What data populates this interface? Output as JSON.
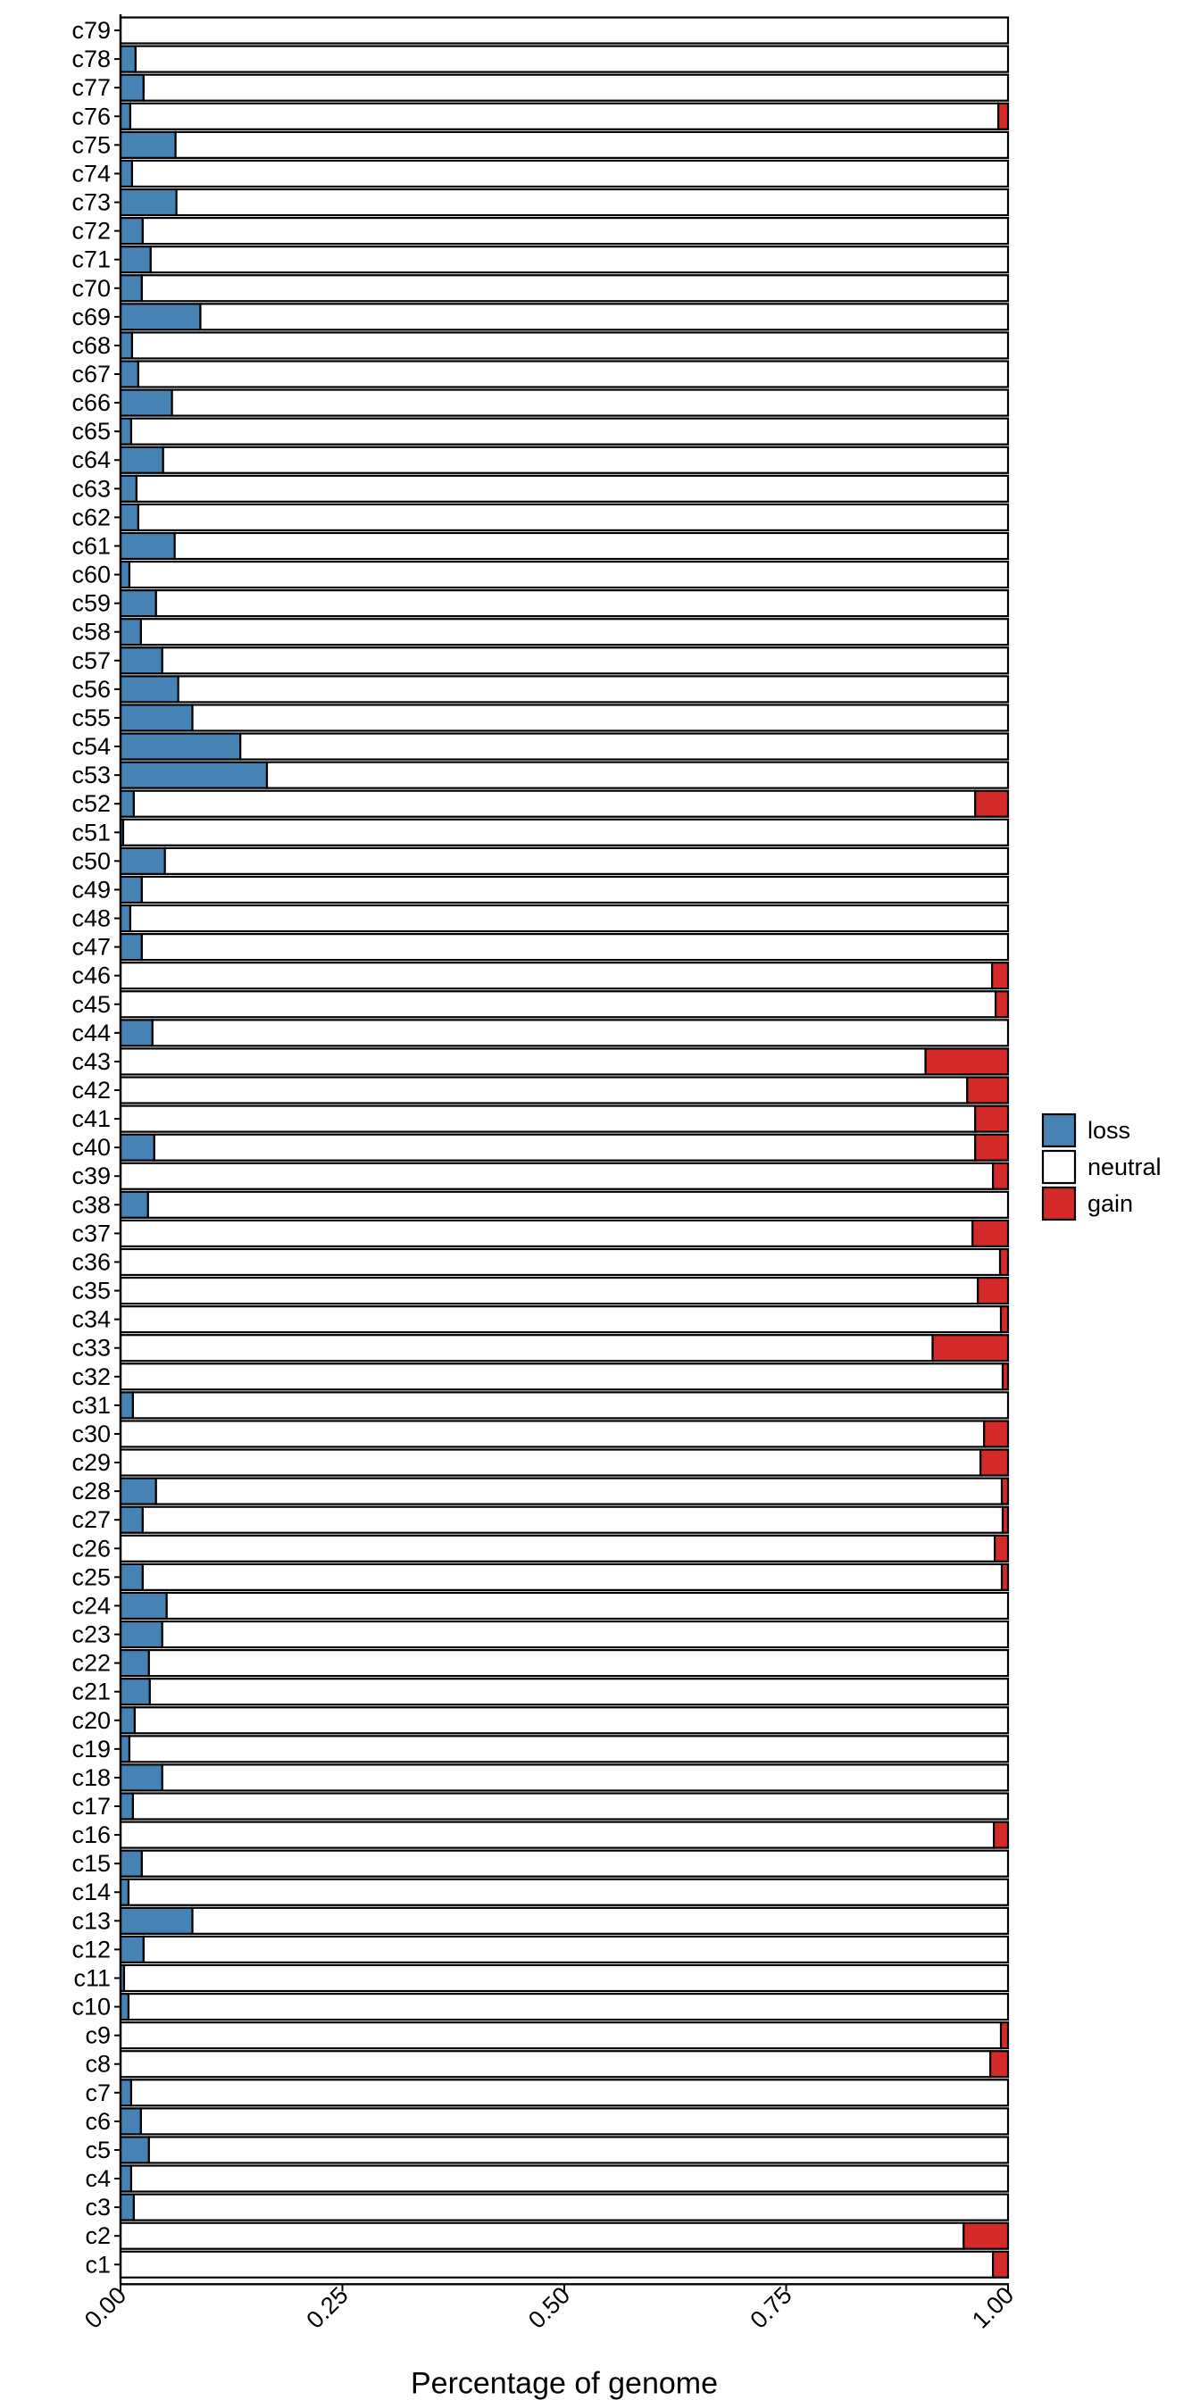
{
  "chart_data": {
    "type": "bar",
    "orientation": "horizontal",
    "stacked": true,
    "xlabel": "Percentage of genome",
    "ylabel": "",
    "xlim": [
      0,
      1
    ],
    "x_ticks": [
      "0.00",
      "0.25",
      "0.50",
      "0.75",
      "1.00"
    ],
    "grid": false,
    "legend": {
      "position": "right",
      "title": ""
    },
    "categories": [
      "c79",
      "c78",
      "c77",
      "c76",
      "c75",
      "c74",
      "c73",
      "c72",
      "c71",
      "c70",
      "c69",
      "c68",
      "c67",
      "c66",
      "c65",
      "c64",
      "c63",
      "c62",
      "c61",
      "c60",
      "c59",
      "c58",
      "c57",
      "c56",
      "c55",
      "c54",
      "c53",
      "c52",
      "c51",
      "c50",
      "c49",
      "c48",
      "c47",
      "c46",
      "c45",
      "c44",
      "c43",
      "c42",
      "c41",
      "c40",
      "c39",
      "c38",
      "c37",
      "c36",
      "c35",
      "c34",
      "c33",
      "c32",
      "c31",
      "c30",
      "c29",
      "c28",
      "c27",
      "c26",
      "c25",
      "c24",
      "c23",
      "c22",
      "c21",
      "c20",
      "c19",
      "c18",
      "c17",
      "c16",
      "c15",
      "c14",
      "c13",
      "c12",
      "c11",
      "c10",
      "c9",
      "c8",
      "c7",
      "c6",
      "c5",
      "c4",
      "c3",
      "c2",
      "c1"
    ],
    "series": [
      {
        "name": "loss",
        "color": "#4682B4",
        "values": [
          0,
          0.017,
          0.026,
          0.011,
          0.062,
          0.013,
          0.063,
          0.025,
          0.034,
          0.024,
          0.09,
          0.013,
          0.02,
          0.058,
          0.012,
          0.048,
          0.018,
          0.02,
          0.061,
          0.01,
          0.04,
          0.023,
          0.047,
          0.065,
          0.081,
          0.135,
          0.165,
          0.015,
          0.003,
          0.05,
          0.024,
          0.011,
          0.024,
          0,
          0,
          0.036,
          0,
          0,
          0,
          0.038,
          0,
          0.031,
          0,
          0,
          0,
          0,
          0,
          0,
          0.014,
          0,
          0,
          0.04,
          0.025,
          0,
          0.025,
          0.052,
          0.047,
          0.032,
          0.033,
          0.016,
          0.01,
          0.047,
          0.014,
          0,
          0.024,
          0.009,
          0.081,
          0.026,
          0.004,
          0.009,
          0,
          0,
          0.012,
          0.023,
          0.032,
          0.012,
          0.015,
          0,
          0
        ]
      },
      {
        "name": "neutral",
        "color": "#FFFFFF",
        "values": [
          1,
          0.983,
          0.974,
          0.978,
          0.938,
          0.987,
          0.937,
          0.975,
          0.966,
          0.976,
          0.91,
          0.987,
          0.98,
          0.942,
          0.988,
          0.952,
          0.982,
          0.98,
          0.939,
          0.99,
          0.96,
          0.977,
          0.953,
          0.935,
          0.919,
          0.865,
          0.835,
          0.948,
          0.997,
          0.95,
          0.976,
          0.989,
          0.976,
          0.982,
          0.986,
          0.964,
          0.907,
          0.954,
          0.963,
          0.925,
          0.983,
          0.969,
          0.96,
          0.991,
          0.966,
          0.992,
          0.915,
          0.994,
          0.986,
          0.973,
          0.969,
          0.953,
          0.969,
          0.985,
          0.968,
          0.948,
          0.953,
          0.968,
          0.967,
          0.984,
          0.99,
          0.953,
          0.986,
          0.984,
          0.976,
          0.991,
          0.919,
          0.974,
          0.996,
          0.991,
          0.992,
          0.98,
          0.988,
          0.977,
          0.968,
          0.988,
          0.985,
          0.95,
          0.983
        ]
      },
      {
        "name": "gain",
        "color": "#D42A2A",
        "values": [
          0,
          0,
          0,
          0.011,
          0,
          0,
          0,
          0,
          0,
          0,
          0,
          0,
          0,
          0,
          0,
          0,
          0,
          0,
          0,
          0,
          0,
          0,
          0,
          0,
          0,
          0,
          0,
          0.037,
          0,
          0,
          0,
          0,
          0,
          0.018,
          0.014,
          0,
          0.093,
          0.046,
          0.037,
          0.037,
          0.017,
          0,
          0.04,
          0.009,
          0.034,
          0.008,
          0.085,
          0.006,
          0,
          0.027,
          0.031,
          0.007,
          0.006,
          0.015,
          0.007,
          0,
          0,
          0,
          0,
          0,
          0,
          0,
          0,
          0.016,
          0,
          0,
          0,
          0,
          0,
          0,
          0.008,
          0.02,
          0,
          0,
          0,
          0,
          0,
          0.05,
          0.017
        ]
      }
    ]
  }
}
